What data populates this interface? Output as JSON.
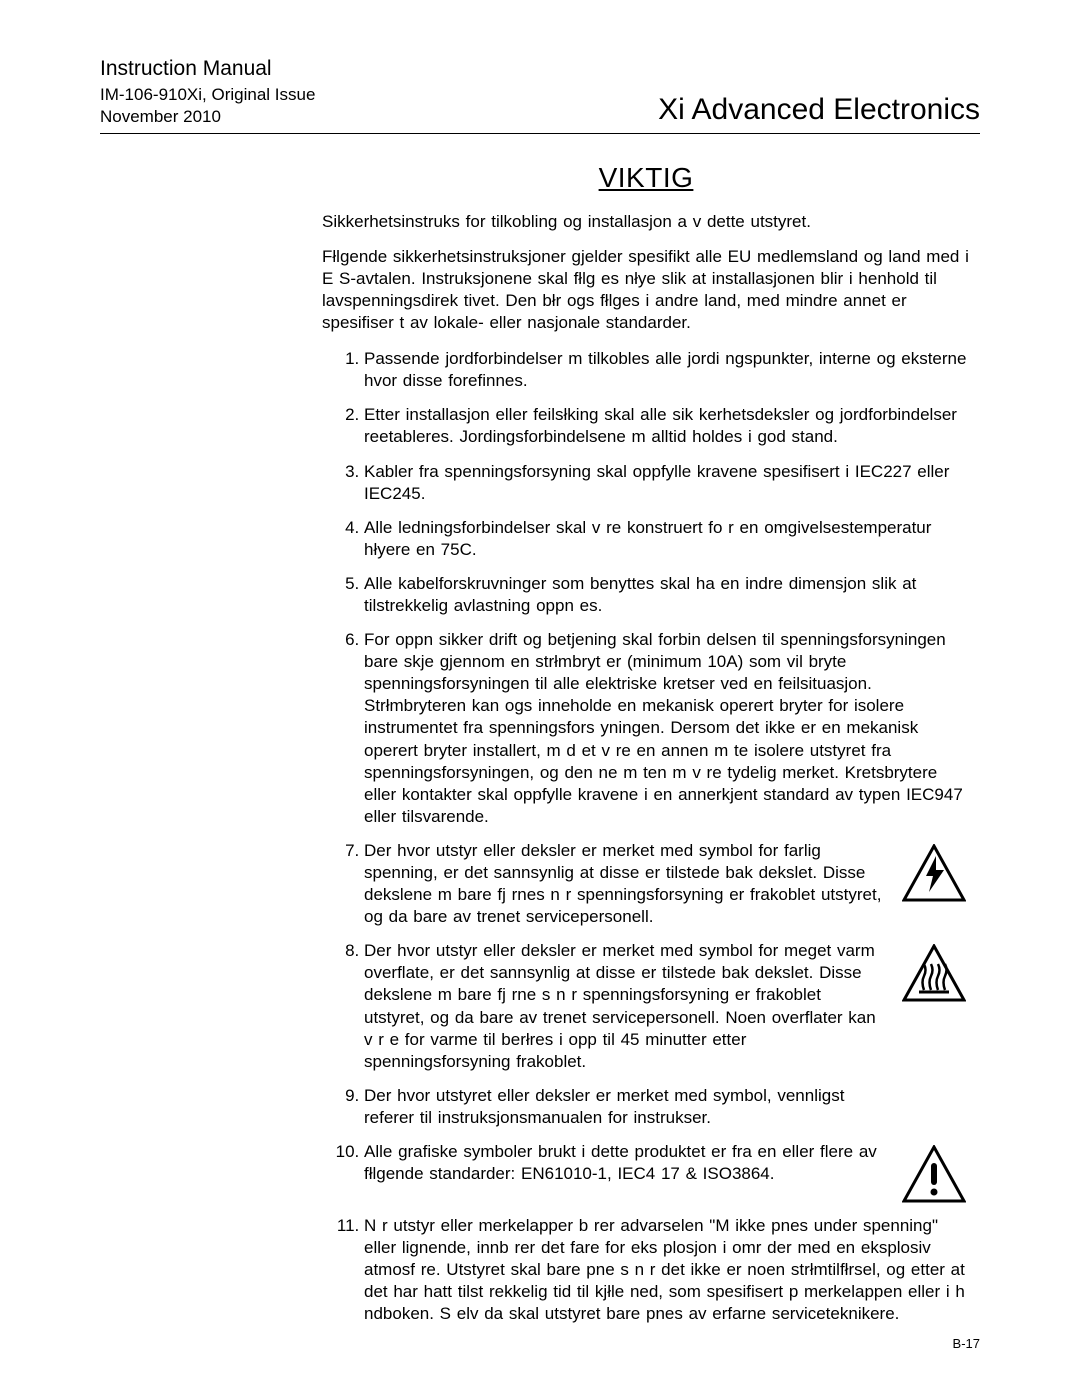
{
  "header": {
    "manual_label": "Instruction Manual",
    "doc_number": "IM-106-910Xi, Original Issue",
    "date": "November 2010",
    "product_title": "Xi Advanced Electronics"
  },
  "section_title": "VIKTIG",
  "intro_line": "Sikkerhetsinstruks for tilkobling og installasjon a      v dette utstyret.",
  "intro_para": "Fłlgende sikkerhetsinstruksjoner gjelder spesifikt       alle EU medlemsland og land med i E S-avtalen. Instruksjonene skal fłlg     es nłye slik at installasjonen blir i henhold til lavspenningsdirek       tivet. Den błr ogs  fłlges i andre land, med mindre annet er spesifiser      t av lokale- eller nasjonale standarder.",
  "items": [
    {
      "text": "Passende jordforbindelser m  tilkobles alle jordi ngspunkter, interne og eksterne hvor disse forefinnes.",
      "icon": null
    },
    {
      "text": "Etter installasjon eller feilsłking skal alle sik kerhetsdeksler og jordforbindelser reetableres. Jordingsforbindelsene m  alltid holdes i god stand.",
      "icon": null
    },
    {
      "text": "Kabler fra spenningsforsyning skal oppfylle kravene spesifisert i IEC227 eller IEC245.",
      "icon": null
    },
    {
      "text": "Alle ledningsforbindelser skal v re konstruert fo  r en omgivelsestemperatur hłyere en 75C.",
      "icon": null
    },
    {
      "text": "Alle kabelforskruvninger som benyttes skal ha en indre dimensjon slik at tilstrekkelig avlastning oppn es.",
      "icon": null
    },
    {
      "text": "For   oppn  sikker drift og betjening skal forbin delsen til spenningsforsyningen bare skje gjennom en strłmbryt er (minimum 10A) som vil bryte spenningsforsyningen til alle elektriske kretser ved en feilsituasjon. Strłmbryteren kan ogs  inneholde en   mekanisk operert bryter for   isolere instrumentet fra spenningsfors yningen. Dersom det ikke er en mekanisk operert bryter installert, m  d et v re en annen m te   isolere utstyret fra spenningsforsyningen, og den ne m ten m  v re tydelig merket. Kretsbrytere eller kontakter skal oppfylle kravene i en annerkjent standard av typen IEC947 eller tilsvarende.",
      "icon": null
    },
    {
      "text": "Der hvor utstyr eller deksler er merket med symbol for farlig spenning, er det sannsynlig at disse er tilstede bak dekslet. Disse dekslene m  bare fj rnes n r spenningsforsyning er frakoblet utstyret, og da bare av trenet servicepersonell.",
      "icon": "voltage"
    },
    {
      "text": "Der hvor utstyr eller deksler er merket med symbol for meget varm overflate, er det sannsynlig at disse er tilstede bak dekslet. Disse dekslene m  bare fj rne   s n r spenningsforsyning er frakoblet utstyret, og da  bare av trenet servicepersonell. Noen overflater kan v r  e for varme til   berłres i opp til 45 minutter etter spenningsforsyning frakoblet.",
      "icon": "hot"
    },
    {
      "text": "Der hvor utstyret eller deksler er merket med symbol, vennligst referer til instruksjonsmanualen for instrukser.",
      "icon": null
    },
    {
      "text": "Alle grafiske symboler brukt i dette produktet er fra en eller flere av fłlgende standarder: EN61010-1, IEC4 17 & ISO3864.",
      "icon": "warning"
    },
    {
      "text": "N r utstyr eller merkelapper b rer advarselen \"M      ikke  pnes under spenning\" eller lignende, innb rer det fare for eks  plosjon i omr der med en eksplosiv atmosf re. Utstyret skal bare  pne   s n r det ikke er noen strłmtilfłrsel, og etter at det har hatt tilst  rekkelig tid til  kjłle ned, som spesifisert p  merkelappen eller i h ndboken. S  elv da skal utstyret bare  pnes av erfarne serviceteknikere.",
      "icon": null
    }
  ],
  "footer_page": "B-17",
  "style": {
    "body_fontsize": 17,
    "title_fontsize": 28,
    "header_right_fontsize": 30,
    "footer_fontsize": 13,
    "text_color": "#000000",
    "bg_color": "#ffffff"
  }
}
